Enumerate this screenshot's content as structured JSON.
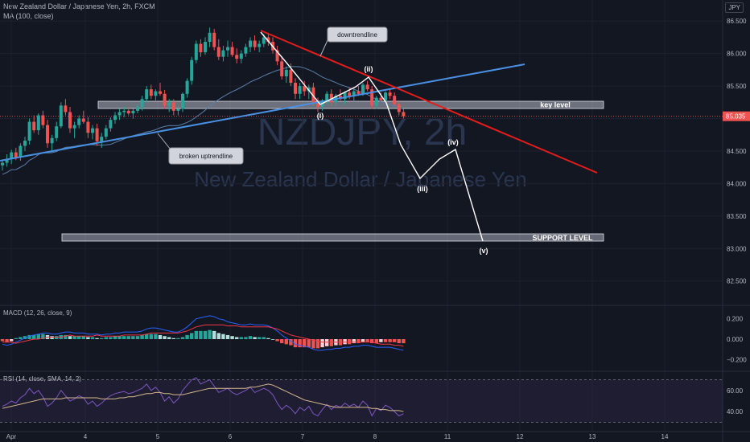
{
  "header": {
    "title": "New Zealand Dollar / Japanese Yen, 2h, FXCM",
    "ma_label": "MA (100, close)",
    "currency_badge": "JPY"
  },
  "watermark": {
    "symbol": "NZDJPY, 2h",
    "name": "New Zealand Dollar / Japanese Yen"
  },
  "colors": {
    "background": "#131722",
    "up": "#26a69a",
    "down": "#ef5350",
    "trend_red": "#e41c1c",
    "trend_blue": "#4a90e2",
    "ma": "#5b7ea8",
    "wave": "#ffffff",
    "macd_line": "#2962ff",
    "signal_line": "#f23645",
    "rsi_line": "#7e57c2",
    "rsi_ma": "#d7b98e"
  },
  "annotations": {
    "downtrendline": "downtrendline",
    "broken_uptrendline": "broken uptrendline",
    "key_level": "key level",
    "support_level": "SUPPORT LEVEL",
    "wave_labels": [
      "(i)",
      "(ii)",
      "(iii)",
      "(iv)",
      "(v)"
    ]
  },
  "chart_data": [
    {
      "type": "candlestick",
      "title": "New Zealand Dollar / Japanese Yen, 2h, FXCM",
      "yaxis": {
        "ticks": [
          "82.500",
          "83.000",
          "83.500",
          "84.000",
          "84.500",
          "85.000",
          "85.500",
          "86.000",
          "86.500"
        ],
        "range": [
          82.15,
          86.75
        ]
      },
      "xaxis": {
        "ticks": [
          "Apr",
          "4",
          "5",
          "6",
          "7",
          "8",
          "11",
          "12",
          "13",
          "14"
        ]
      },
      "last_price": "85.035",
      "candles": [
        [
          84.28,
          84.36,
          84.2,
          84.32
        ],
        [
          84.32,
          84.45,
          84.26,
          84.38
        ],
        [
          84.38,
          84.52,
          84.3,
          84.48
        ],
        [
          84.48,
          84.55,
          84.36,
          84.4
        ],
        [
          84.4,
          84.62,
          84.35,
          84.58
        ],
        [
          84.58,
          84.72,
          84.5,
          84.66
        ],
        [
          84.66,
          85.0,
          84.6,
          84.95
        ],
        [
          84.95,
          85.05,
          84.78,
          84.82
        ],
        [
          84.82,
          85.08,
          84.75,
          85.05
        ],
        [
          85.05,
          85.12,
          84.85,
          84.9
        ],
        [
          84.9,
          84.98,
          84.55,
          84.62
        ],
        [
          84.62,
          84.75,
          84.5,
          84.7
        ],
        [
          84.7,
          84.95,
          84.65,
          84.88
        ],
        [
          84.88,
          85.25,
          84.85,
          85.2
        ],
        [
          85.2,
          85.3,
          85.05,
          85.1
        ],
        [
          85.1,
          85.18,
          84.78,
          84.85
        ],
        [
          84.85,
          84.95,
          84.7,
          84.9
        ],
        [
          84.9,
          85.05,
          84.85,
          85.0
        ],
        [
          85.0,
          85.12,
          84.92,
          84.95
        ],
        [
          84.95,
          85.02,
          84.7,
          84.78
        ],
        [
          84.78,
          84.9,
          84.68,
          84.85
        ],
        [
          84.85,
          84.92,
          84.58,
          84.65
        ],
        [
          84.65,
          84.78,
          84.55,
          84.72
        ],
        [
          84.72,
          84.9,
          84.68,
          84.85
        ],
        [
          84.85,
          85.02,
          84.8,
          84.98
        ],
        [
          84.98,
          85.1,
          84.92,
          85.05
        ],
        [
          85.05,
          85.15,
          84.98,
          85.1
        ],
        [
          85.1,
          85.18,
          85.02,
          85.12
        ],
        [
          85.12,
          85.18,
          85.05,
          85.08
        ],
        [
          85.08,
          85.15,
          85.0,
          85.12
        ],
        [
          85.12,
          85.22,
          85.08,
          85.18
        ],
        [
          85.18,
          85.35,
          85.12,
          85.3
        ],
        [
          85.3,
          85.5,
          85.25,
          85.45
        ],
        [
          85.45,
          85.52,
          85.3,
          85.35
        ],
        [
          85.35,
          85.45,
          85.28,
          85.42
        ],
        [
          85.42,
          85.55,
          85.35,
          85.38
        ],
        [
          85.38,
          85.44,
          85.15,
          85.2
        ],
        [
          85.2,
          85.3,
          85.1,
          85.25
        ],
        [
          85.25,
          85.3,
          85.05,
          85.12
        ],
        [
          85.12,
          85.2,
          85.05,
          85.15
        ],
        [
          85.15,
          85.4,
          85.1,
          85.38
        ],
        [
          85.38,
          85.62,
          85.32,
          85.58
        ],
        [
          85.58,
          85.95,
          85.52,
          85.9
        ],
        [
          85.9,
          86.2,
          85.85,
          86.15
        ],
        [
          86.15,
          86.22,
          85.95,
          86.02
        ],
        [
          86.02,
          86.25,
          85.98,
          86.18
        ],
        [
          86.18,
          86.4,
          86.1,
          86.32
        ],
        [
          86.32,
          86.38,
          86.05,
          86.1
        ],
        [
          86.1,
          86.22,
          85.9,
          85.95
        ],
        [
          85.95,
          86.12,
          85.88,
          86.05
        ],
        [
          86.05,
          86.2,
          85.95,
          86.1
        ],
        [
          86.1,
          86.18,
          85.95,
          85.98
        ],
        [
          85.98,
          86.08,
          85.85,
          85.92
        ],
        [
          85.92,
          86.05,
          85.85,
          86.0
        ],
        [
          86.0,
          86.15,
          85.95,
          86.1
        ],
        [
          86.1,
          86.25,
          86.02,
          86.2
        ],
        [
          86.2,
          86.28,
          86.05,
          86.1
        ],
        [
          86.1,
          86.2,
          86.02,
          86.15
        ],
        [
          86.15,
          86.3,
          86.1,
          86.25
        ],
        [
          86.25,
          86.32,
          86.12,
          86.18
        ],
        [
          86.18,
          86.25,
          86.0,
          86.05
        ],
        [
          86.05,
          86.12,
          85.82,
          85.88
        ],
        [
          85.88,
          85.95,
          85.6,
          85.65
        ],
        [
          85.65,
          85.8,
          85.55,
          85.75
        ],
        [
          85.75,
          85.85,
          85.5,
          85.55
        ],
        [
          85.55,
          85.62,
          85.3,
          85.38
        ],
        [
          85.38,
          85.55,
          85.3,
          85.5
        ],
        [
          85.5,
          85.58,
          85.35,
          85.42
        ],
        [
          85.42,
          85.52,
          85.3,
          85.48
        ],
        [
          85.48,
          85.55,
          85.2,
          85.25
        ],
        [
          85.25,
          85.32,
          85.1,
          85.18
        ],
        [
          85.18,
          85.3,
          85.12,
          85.28
        ],
        [
          85.28,
          85.42,
          85.22,
          85.38
        ],
        [
          85.38,
          85.45,
          85.2,
          85.25
        ],
        [
          85.25,
          85.38,
          85.2,
          85.35
        ],
        [
          85.35,
          85.45,
          85.28,
          85.3
        ],
        [
          85.3,
          85.42,
          85.22,
          85.4
        ],
        [
          85.4,
          85.48,
          85.3,
          85.35
        ],
        [
          85.35,
          85.45,
          85.25,
          85.42
        ],
        [
          85.42,
          85.5,
          85.35,
          85.38
        ],
        [
          85.38,
          85.55,
          85.35,
          85.52
        ],
        [
          85.52,
          85.58,
          85.42,
          85.45
        ],
        [
          85.45,
          85.5,
          85.15,
          85.2
        ],
        [
          85.2,
          85.35,
          85.15,
          85.32
        ],
        [
          85.32,
          85.4,
          85.25,
          85.28
        ],
        [
          85.28,
          85.42,
          85.25,
          85.4
        ],
        [
          85.4,
          85.45,
          85.3,
          85.35
        ],
        [
          85.35,
          85.4,
          85.2,
          85.22
        ],
        [
          85.22,
          85.28,
          85.05,
          85.1
        ],
        [
          85.1,
          85.15,
          85.0,
          85.035
        ]
      ]
    },
    {
      "type": "bar",
      "title": "MACD (12, 26, close, 9)",
      "yaxis": {
        "ticks": [
          "0.200",
          "0.000",
          "−0.200"
        ],
        "range": [
          -0.3,
          0.3
        ]
      },
      "histogram": [
        -0.02,
        -0.03,
        -0.02,
        0.01,
        0.02,
        0.03,
        0.04,
        0.04,
        0.05,
        0.05,
        0.04,
        0.03,
        0.03,
        0.04,
        0.04,
        0.03,
        0.03,
        0.03,
        0.03,
        0.02,
        0.02,
        0.01,
        0.01,
        0.02,
        0.02,
        0.03,
        0.03,
        0.03,
        0.03,
        0.03,
        0.03,
        0.04,
        0.05,
        0.05,
        0.05,
        0.04,
        0.03,
        0.02,
        0.01,
        0.01,
        0.02,
        0.04,
        0.06,
        0.08,
        0.08,
        0.08,
        0.09,
        0.08,
        0.06,
        0.05,
        0.04,
        0.03,
        0.02,
        0.02,
        0.02,
        0.03,
        0.02,
        0.02,
        0.02,
        0.01,
        0.0,
        -0.02,
        -0.04,
        -0.05,
        -0.06,
        -0.08,
        -0.08,
        -0.08,
        -0.08,
        -0.09,
        -0.09,
        -0.08,
        -0.07,
        -0.07,
        -0.06,
        -0.06,
        -0.05,
        -0.05,
        -0.04,
        -0.04,
        -0.03,
        -0.03,
        -0.04,
        -0.04,
        -0.03,
        -0.03,
        -0.03,
        -0.03,
        -0.04,
        -0.04
      ],
      "macd": [
        -0.05,
        -0.06,
        -0.05,
        -0.03,
        -0.01,
        0.01,
        0.03,
        0.04,
        0.05,
        0.06,
        0.06,
        0.05,
        0.05,
        0.06,
        0.07,
        0.07,
        0.06,
        0.06,
        0.06,
        0.05,
        0.05,
        0.05,
        0.04,
        0.05,
        0.05,
        0.06,
        0.06,
        0.07,
        0.07,
        0.07,
        0.07,
        0.08,
        0.1,
        0.11,
        0.11,
        0.1,
        0.09,
        0.08,
        0.07,
        0.07,
        0.09,
        0.12,
        0.16,
        0.2,
        0.21,
        0.22,
        0.23,
        0.22,
        0.2,
        0.19,
        0.17,
        0.16,
        0.15,
        0.14,
        0.14,
        0.15,
        0.14,
        0.14,
        0.14,
        0.13,
        0.11,
        0.08,
        0.04,
        0.01,
        -0.02,
        -0.05,
        -0.06,
        -0.07,
        -0.08,
        -0.1,
        -0.11,
        -0.11,
        -0.1,
        -0.1,
        -0.09,
        -0.09,
        -0.08,
        -0.08,
        -0.07,
        -0.07,
        -0.06,
        -0.06,
        -0.07,
        -0.08,
        -0.08,
        -0.08,
        -0.08,
        -0.09,
        -0.1,
        -0.11
      ],
      "signal": [
        -0.03,
        -0.03,
        -0.03,
        -0.04,
        -0.03,
        -0.02,
        -0.01,
        0.0,
        0.0,
        0.01,
        0.02,
        0.02,
        0.02,
        0.02,
        0.03,
        0.04,
        0.03,
        0.03,
        0.03,
        0.03,
        0.03,
        0.04,
        0.03,
        0.03,
        0.03,
        0.03,
        0.03,
        0.04,
        0.04,
        0.04,
        0.04,
        0.04,
        0.05,
        0.06,
        0.06,
        0.06,
        0.06,
        0.06,
        0.06,
        0.06,
        0.07,
        0.08,
        0.1,
        0.12,
        0.13,
        0.14,
        0.14,
        0.14,
        0.14,
        0.14,
        0.13,
        0.13,
        0.13,
        0.12,
        0.12,
        0.12,
        0.12,
        0.12,
        0.12,
        0.12,
        0.11,
        0.1,
        0.08,
        0.06,
        0.04,
        0.03,
        0.02,
        0.01,
        0.0,
        -0.01,
        -0.02,
        -0.03,
        -0.03,
        -0.03,
        -0.03,
        -0.03,
        -0.03,
        -0.03,
        -0.03,
        -0.03,
        -0.03,
        -0.03,
        -0.03,
        -0.04,
        -0.05,
        -0.05,
        -0.05,
        -0.06,
        -0.06,
        -0.07
      ]
    },
    {
      "type": "line",
      "title": "RSI (14, close, SMA, 14, 2)",
      "yaxis": {
        "ticks": [
          "60.00",
          "40.00"
        ],
        "range": [
          25,
          75
        ]
      },
      "bands": [
        70,
        30
      ],
      "rsi": [
        45,
        47,
        50,
        48,
        53,
        56,
        62,
        57,
        60,
        54,
        45,
        48,
        53,
        60,
        55,
        50,
        52,
        55,
        53,
        47,
        50,
        45,
        48,
        52,
        55,
        57,
        58,
        59,
        57,
        58,
        60,
        62,
        66,
        60,
        63,
        58,
        50,
        54,
        48,
        52,
        60,
        65,
        70,
        72,
        66,
        68,
        70,
        64,
        58,
        60,
        62,
        58,
        56,
        58,
        60,
        63,
        58,
        60,
        62,
        60,
        56,
        48,
        42,
        46,
        43,
        38,
        44,
        41,
        45,
        38,
        36,
        42,
        47,
        42,
        46,
        44,
        48,
        45,
        47,
        44,
        50,
        46,
        36,
        43,
        41,
        46,
        44,
        40,
        36,
        38
      ],
      "rsi_ma": [
        43,
        44,
        45,
        46,
        47,
        48,
        49,
        50,
        51,
        52,
        52,
        52,
        52,
        52,
        53,
        53,
        53,
        53,
        53,
        53,
        53,
        53,
        52,
        52,
        52,
        52,
        53,
        53,
        54,
        54,
        55,
        56,
        57,
        57,
        58,
        58,
        57,
        57,
        56,
        56,
        56,
        57,
        58,
        59,
        60,
        61,
        62,
        62,
        62,
        62,
        62,
        62,
        62,
        62,
        62,
        63,
        63,
        64,
        65,
        66,
        65,
        63,
        61,
        59,
        57,
        55,
        53,
        51,
        50,
        49,
        48,
        47,
        46,
        45,
        44,
        44,
        44,
        44,
        44,
        44,
        44,
        44,
        43,
        43,
        42,
        42,
        41,
        41,
        41,
        40
      ]
    }
  ]
}
